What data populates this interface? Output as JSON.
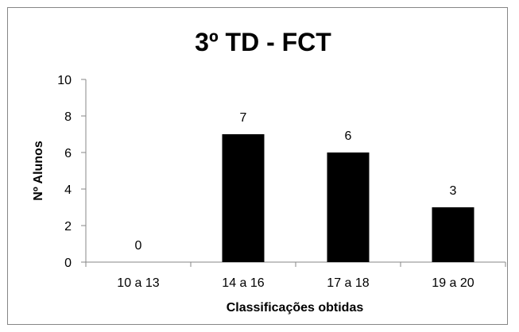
{
  "chart_data": {
    "type": "bar",
    "title": "3º TD - FCT",
    "xlabel": "Classificações obtidas",
    "ylabel": "Nº Alunos",
    "categories": [
      "10 a 13",
      "14 a 16",
      "17 a 18",
      "19 a 20"
    ],
    "values": [
      0,
      7,
      6,
      3
    ],
    "ylim": [
      0,
      10
    ],
    "yticks": [
      "0",
      "2",
      "4",
      "6",
      "8",
      "10"
    ],
    "grid": false,
    "legend": "none",
    "bar_color": "#000000",
    "data_labels": true
  }
}
